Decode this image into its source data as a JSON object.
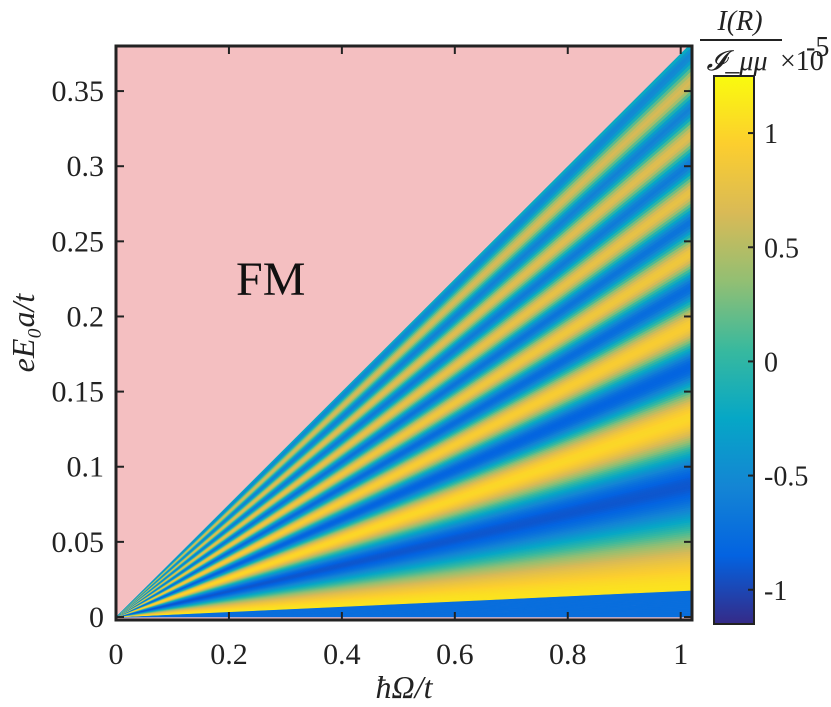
{
  "chart_data": {
    "type": "heatmap",
    "title": "",
    "xlabel": "ħΩ/t",
    "ylabel": "eE₀a/t",
    "xlim": [
      0,
      1.02
    ],
    "ylim": [
      -0.002,
      0.38
    ],
    "x_ticks": [
      0,
      0.2,
      0.4,
      0.6,
      0.8,
      1
    ],
    "x_tick_labels": [
      "0",
      "0.2",
      "0.4",
      "0.6",
      "0.8",
      "1"
    ],
    "y_ticks": [
      0,
      0.05,
      0.1,
      0.15,
      0.2,
      0.25,
      0.3,
      0.35
    ],
    "y_tick_labels": [
      "0",
      "0.05",
      "0.1",
      "0.15",
      "0.2",
      "0.25",
      "0.3",
      "0.35"
    ],
    "region_boundary": "eE₀a/t = 0.375·ħΩ/t",
    "region_annotation": "FM",
    "region_color": "#f4bfc1",
    "colormap": "parula",
    "colorbar": {
      "label_numerator": "I(R)",
      "label_denominator": "𝓘_μμ",
      "exponent": "×10",
      "exponent_power": "-5",
      "range": [
        -1.15,
        1.25
      ],
      "ticks": [
        1,
        0.5,
        0,
        -0.5,
        -1
      ],
      "tick_labels": [
        "1",
        "0.5",
        "0",
        "-0.5",
        "-1"
      ]
    },
    "grid": false
  }
}
